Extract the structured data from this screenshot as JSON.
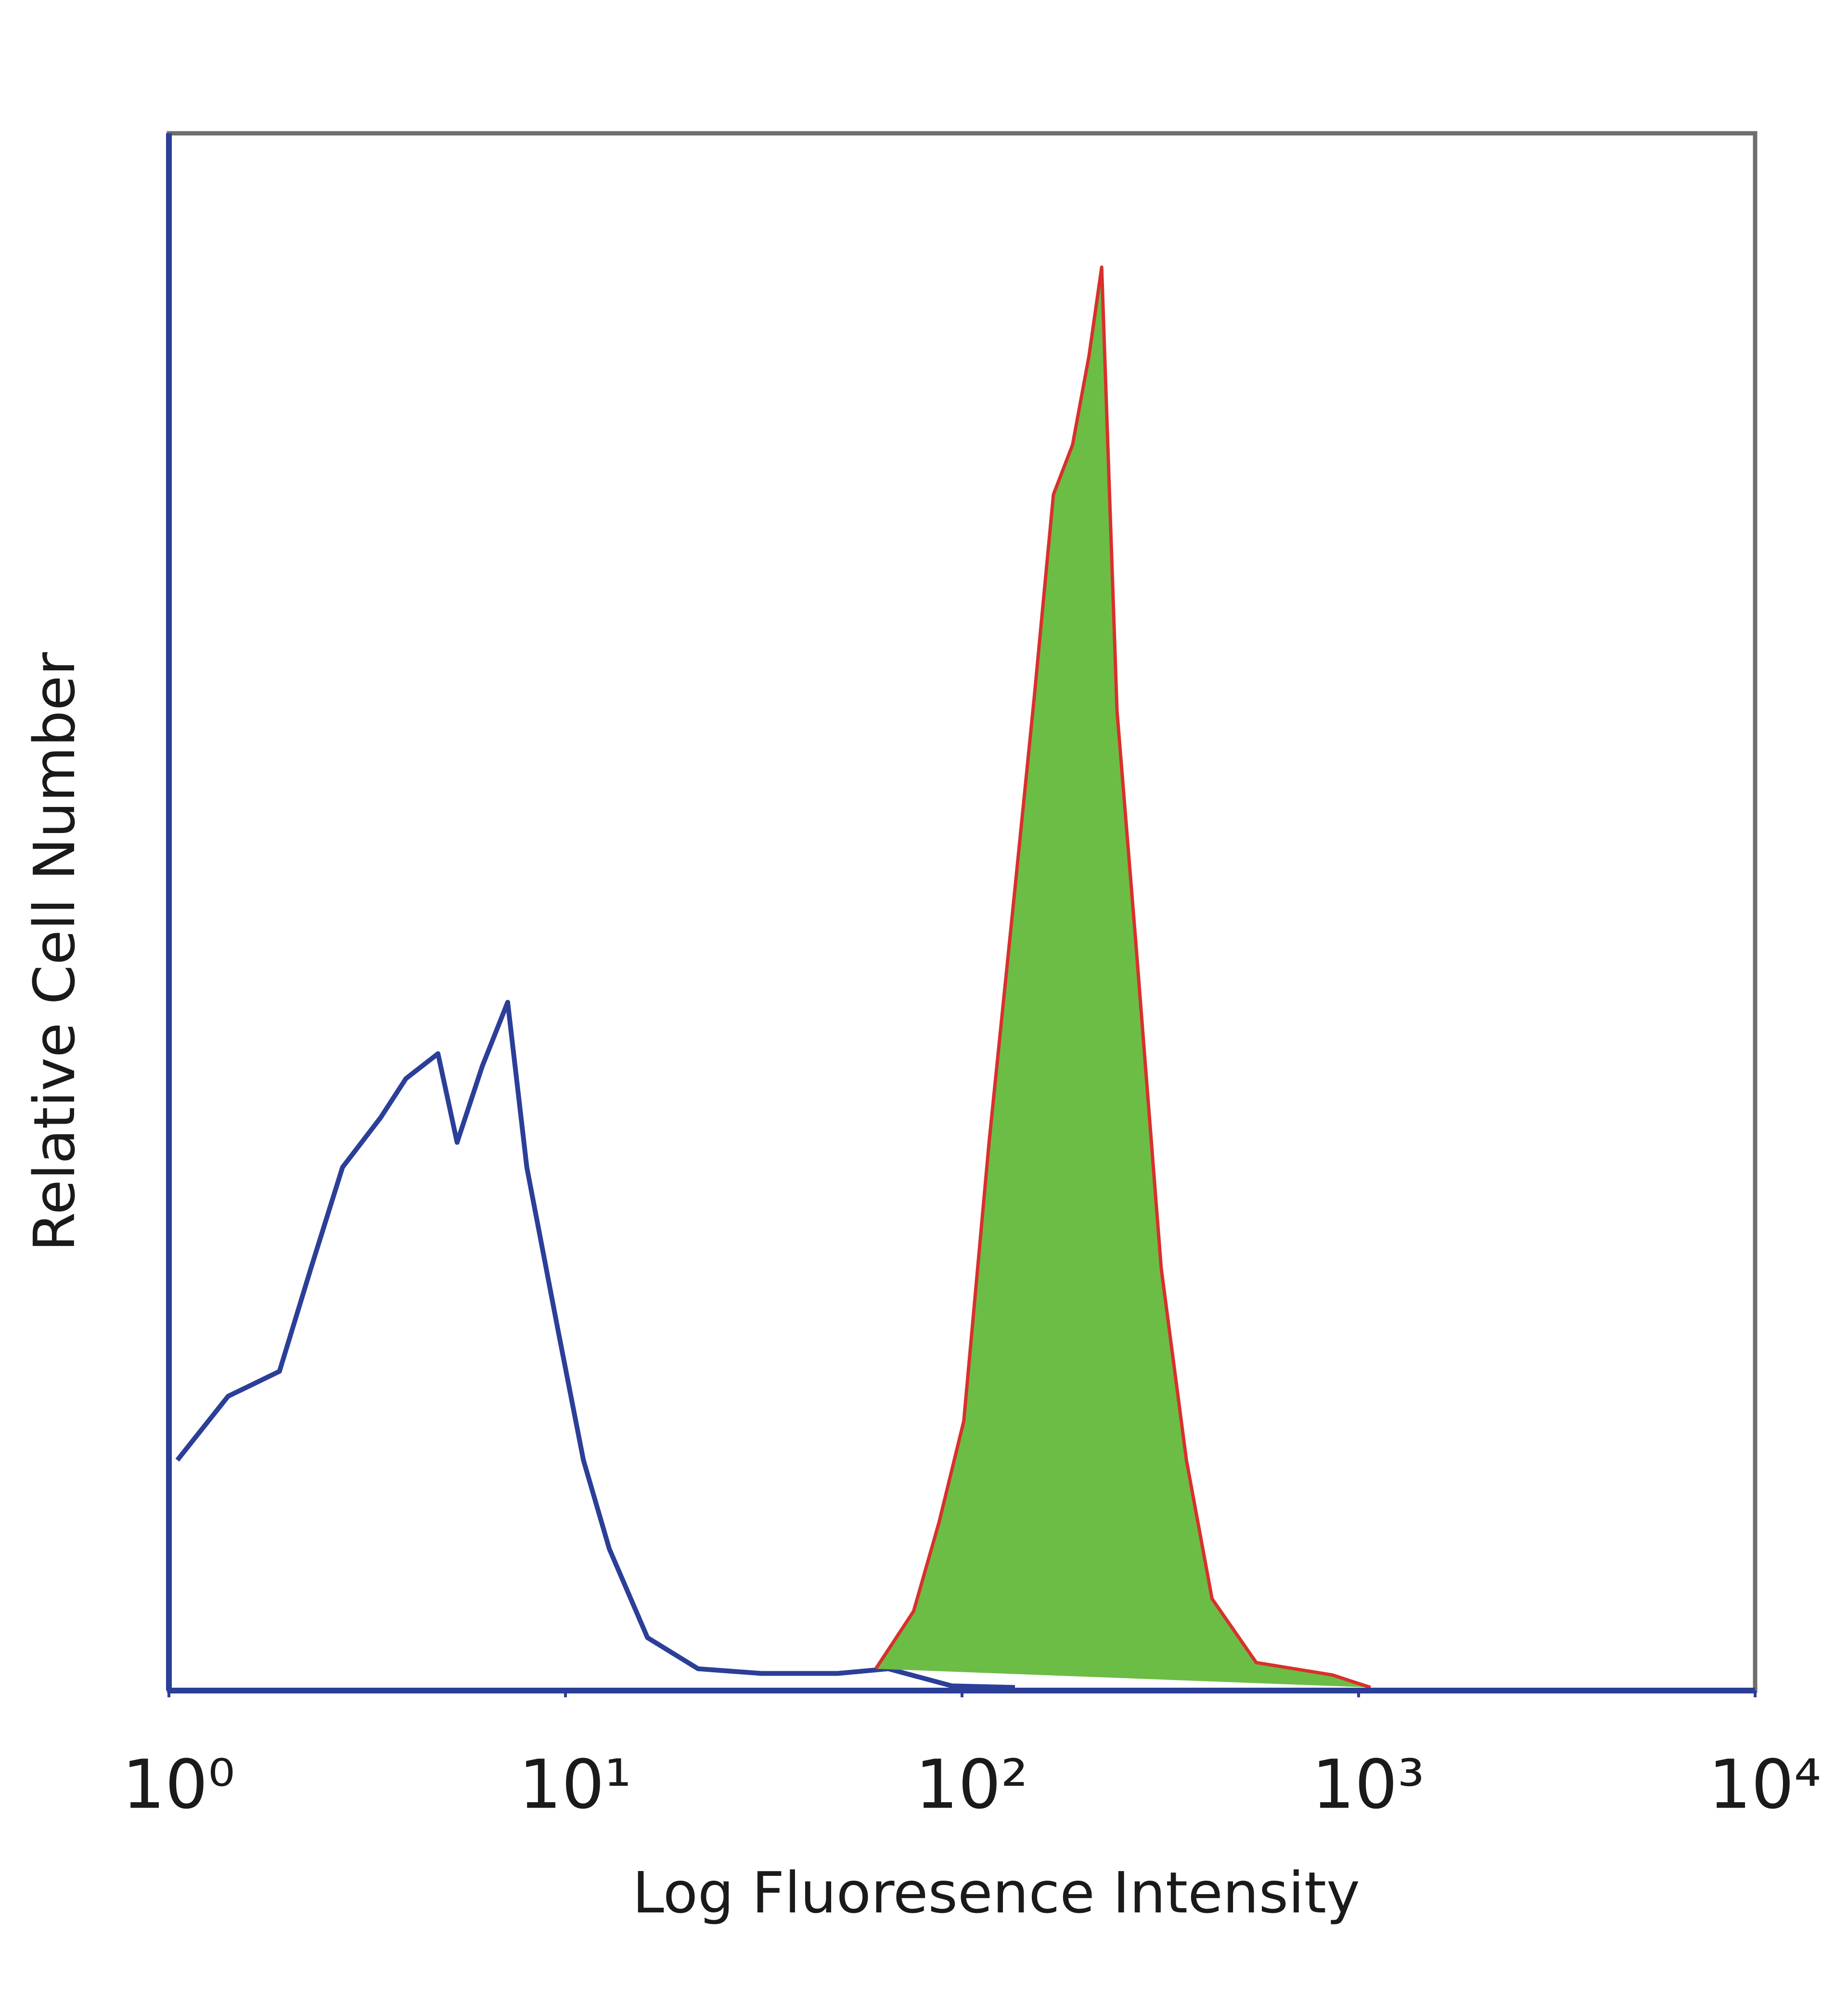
{
  "chart_data": {
    "type": "histogram-overlay",
    "x_label": "Log Fluoresence Intensity",
    "y_label": "Relative Cell Number",
    "x_log": true,
    "xlim": [
      1,
      10000
    ],
    "xticks": [
      {
        "value": 1,
        "label": "10⁰"
      },
      {
        "value": 10,
        "label": "10¹"
      },
      {
        "value": 100,
        "label": "10²"
      },
      {
        "value": 1000,
        "label": "10³"
      },
      {
        "value": 10000,
        "label": "10⁴"
      }
    ],
    "ylim": [
      0,
      100
    ],
    "series": [
      {
        "color": "#2b3f98",
        "filled": false,
        "x": [
          1.05,
          1.41,
          1.9,
          2.28,
          2.74,
          3.42,
          3.96,
          4.77,
          5.33,
          6.17,
          7.15,
          7.99,
          9.6,
          11.1,
          12.9,
          16.1,
          21.6,
          31.2,
          48.6,
          65.2,
          94.3,
          136
        ],
        "values": [
          14.8,
          18.9,
          20.5,
          27.1,
          33.6,
          36.8,
          39.3,
          40.9,
          35.2,
          40.1,
          44.2,
          33.6,
          23.0,
          14.8,
          9.1,
          3.4,
          1.4,
          1.1,
          1.1,
          1.4,
          0.3,
          0.2
        ]
      },
      {
        "color": "#d9302c",
        "fill_color": "#6cbd45",
        "filled": true,
        "x": [
          60.6,
          75.5,
          87.5,
          101,
          117,
          136,
          152,
          170,
          190,
          209,
          225,
          246,
          274,
          318,
          368,
          427,
          552,
          859,
          1072
        ],
        "values": [
          1.4,
          5.1,
          10.8,
          17.3,
          35.2,
          51.5,
          63.7,
          76.8,
          80.0,
          85.7,
          91.4,
          62.9,
          48.2,
          27.1,
          14.8,
          5.9,
          1.8,
          1.0,
          0.2
        ]
      }
    ],
    "frame_color": "#6e6e6e",
    "axis_color": "#2b3f98"
  }
}
